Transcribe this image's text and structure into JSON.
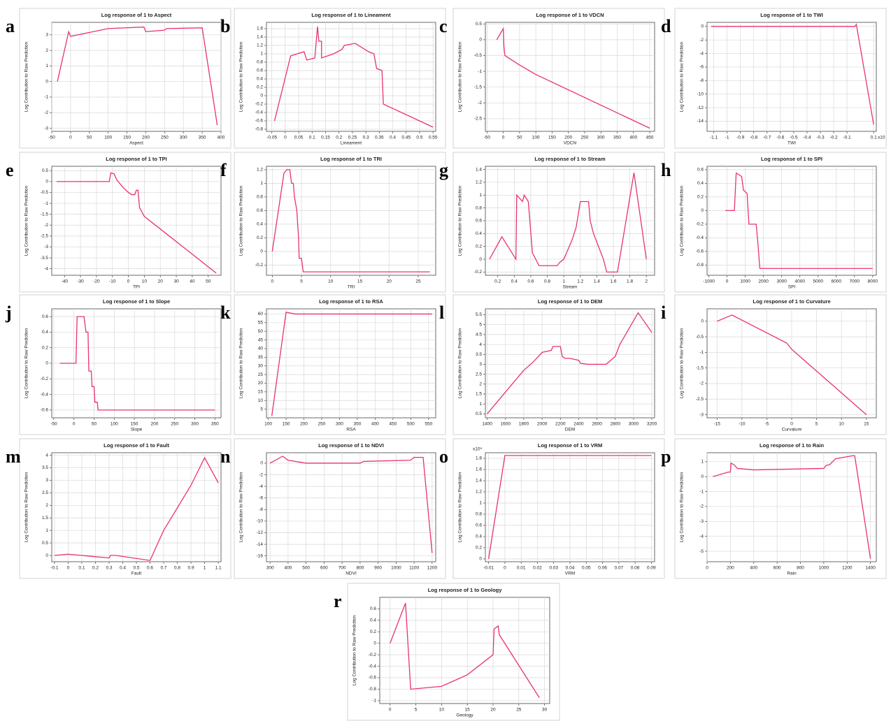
{
  "chart_data": [
    {
      "type": "line",
      "panel": "a",
      "title": "Log response of 1 to Aspect",
      "x_label": "Aspect",
      "y_label": "Log Contribution to Raw Prediction",
      "color": "#e8336d",
      "grid": true,
      "xlim": [
        -50,
        400
      ],
      "xticks": [
        -50,
        0,
        50,
        100,
        150,
        200,
        250,
        300,
        350,
        400
      ],
      "ylim": [
        -3.2,
        3.8
      ],
      "yticks": [
        -3,
        -2,
        -1,
        0,
        1,
        2,
        3
      ],
      "x": [
        -35,
        -5,
        0,
        100,
        195,
        200,
        250,
        255,
        350,
        390
      ],
      "values": [
        0,
        3.2,
        2.9,
        3.4,
        3.5,
        3.2,
        3.3,
        3.4,
        3.45,
        -2.8
      ]
    },
    {
      "type": "line",
      "panel": "b",
      "title": "Log response of 1 to Lineament",
      "x_label": "Lineament",
      "y_label": "Log Contribution to Raw Prediction",
      "color": "#e8336d",
      "grid": true,
      "xlim": [
        -0.07,
        0.56
      ],
      "xticks": [
        -0.05,
        0,
        0.05,
        0.1,
        0.15,
        0.2,
        0.25,
        0.3,
        0.35,
        0.4,
        0.45,
        0.5,
        0.55
      ],
      "ylim": [
        -0.85,
        1.75
      ],
      "yticks": [
        -0.8,
        -0.6,
        -0.4,
        -0.2,
        0,
        0.2,
        0.4,
        0.6,
        0.8,
        1,
        1.2,
        1.4,
        1.6
      ],
      "x": [
        -0.04,
        0.02,
        0.07,
        0.08,
        0.11,
        0.12,
        0.125,
        0.135,
        0.135,
        0.18,
        0.21,
        0.22,
        0.26,
        0.31,
        0.33,
        0.34,
        0.36,
        0.365,
        0.55
      ],
      "values": [
        -0.6,
        0.95,
        1.05,
        0.85,
        0.9,
        1.65,
        1.3,
        1.3,
        0.9,
        1,
        1.1,
        1.2,
        1.25,
        1.05,
        1,
        0.65,
        0.6,
        -0.2,
        -0.75
      ]
    },
    {
      "type": "line",
      "panel": "c",
      "title": "Log response of 1 to VDCN",
      "x_label": "VDCN",
      "y_label": "Log Contribution to Raw Prediction",
      "color": "#e8336d",
      "grid": true,
      "xlim": [
        -55,
        465
      ],
      "xticks": [
        -50,
        0,
        50,
        100,
        150,
        200,
        250,
        300,
        350,
        400,
        450
      ],
      "ylim": [
        -2.9,
        0.55
      ],
      "yticks": [
        -2.5,
        -2,
        -1.5,
        -1,
        -0.5,
        0,
        0.5
      ],
      "x": [
        -20,
        0,
        2,
        5,
        50,
        100,
        450
      ],
      "values": [
        0,
        0.35,
        -0.2,
        -0.5,
        -0.8,
        -1.1,
        -2.8
      ]
    },
    {
      "type": "line",
      "panel": "d",
      "title": "Log response of 1 to TWI",
      "x_label": "TWI",
      "x_multiplier": "x10",
      "y_label": "Log Contribution to Raw Prediction",
      "color": "#e8336d",
      "grid": true,
      "xlim": [
        -1.15,
        0.12
      ],
      "xticks": [
        -1.1,
        -1,
        -0.9,
        -0.8,
        -0.7,
        -0.6,
        -0.5,
        -0.4,
        -0.3,
        -0.2,
        -0.1,
        0.1
      ],
      "ylim": [
        -15.5,
        0.6
      ],
      "yticks": [
        -14,
        -12,
        -10,
        -8,
        -6,
        -4,
        -2,
        0
      ],
      "x": [
        -1.12,
        -0.04,
        -0.03,
        0.1
      ],
      "values": [
        0,
        0,
        0.3,
        -14.5
      ]
    },
    {
      "type": "line",
      "panel": "e",
      "title": "Log response of 1 to TPI",
      "x_label": "TPI",
      "y_label": "Log Contribution to Raw Prediction",
      "color": "#e8336d",
      "grid": true,
      "xlim": [
        -48,
        58
      ],
      "xticks": [
        -40,
        -30,
        -20,
        -10,
        0,
        10,
        20,
        30,
        40,
        50
      ],
      "ylim": [
        -4.3,
        0.7
      ],
      "yticks": [
        -4,
        -3.5,
        -3,
        -2.5,
        -2,
        -1.5,
        -1,
        -0.5,
        0,
        0.5
      ],
      "x": [
        -45,
        -12,
        -11,
        -9,
        -7,
        -3,
        0,
        2,
        4,
        5,
        6,
        7,
        10,
        55
      ],
      "values": [
        0,
        0,
        0.4,
        0.35,
        0.05,
        -0.3,
        -0.5,
        -0.6,
        -0.6,
        -0.4,
        -0.4,
        -1.2,
        -1.6,
        -4.2
      ]
    },
    {
      "type": "line",
      "panel": "f",
      "title": "Log response of 1 to TRI",
      "x_label": "TRI",
      "y_label": "Log Contribution to Raw Prediction",
      "color": "#e8336d",
      "grid": true,
      "xlim": [
        -1,
        28
      ],
      "xticks": [
        0,
        5,
        10,
        15,
        20,
        25
      ],
      "ylim": [
        -0.35,
        1.25
      ],
      "yticks": [
        -0.2,
        0,
        0.2,
        0.4,
        0.6,
        0.8,
        1,
        1.2
      ],
      "x": [
        0,
        2,
        2.5,
        3,
        3.3,
        3.6,
        3.8,
        4.2,
        4.5,
        4.6,
        5,
        5.3,
        27
      ],
      "values": [
        0,
        1.15,
        1.2,
        1.2,
        1,
        1,
        0.8,
        0.6,
        0.2,
        -0.1,
        -0.1,
        -0.3,
        -0.3
      ]
    },
    {
      "type": "line",
      "panel": "g",
      "title": "Log response of 1 to Stream",
      "x_label": "Stream",
      "y_label": "Log Contribution to Raw Prediction",
      "color": "#e8336d",
      "grid": true,
      "xlim": [
        0.05,
        2.1
      ],
      "xticks": [
        0.2,
        0.4,
        0.6,
        0.8,
        1,
        1.2,
        1.4,
        1.6,
        1.8,
        2
      ],
      "ylim": [
        -0.25,
        1.45
      ],
      "yticks": [
        -0.2,
        0,
        0.2,
        0.4,
        0.6,
        0.8,
        1,
        1.2,
        1.4
      ],
      "x": [
        0.1,
        0.25,
        0.42,
        0.43,
        0.5,
        0.52,
        0.57,
        0.62,
        0.7,
        0.92,
        0.95,
        1,
        1.05,
        1.1,
        1.15,
        1.2,
        1.3,
        1.32,
        1.36,
        1.42,
        1.48,
        1.52,
        1.65,
        1.85,
        2
      ],
      "values": [
        0,
        0.35,
        0,
        1,
        0.9,
        1,
        0.9,
        0.1,
        -0.1,
        -0.1,
        -0.05,
        0,
        0.15,
        0.3,
        0.5,
        0.9,
        0.9,
        0.6,
        0.4,
        0.2,
        0,
        -0.2,
        -0.2,
        1.35,
        0
      ]
    },
    {
      "type": "line",
      "panel": "h",
      "title": "Log response of 1 to SPI",
      "x_label": "SPI",
      "y_label": "Log Contribution to Raw Prediction",
      "color": "#e8336d",
      "grid": true,
      "xlim": [
        -1100,
        8200
      ],
      "xticks": [
        -1000,
        0,
        1000,
        2000,
        3000,
        4000,
        5000,
        6000,
        7000,
        8000
      ],
      "ylim": [
        -0.95,
        0.65
      ],
      "yticks": [
        -0.8,
        -0.6,
        -0.4,
        -0.2,
        0,
        0.2,
        0.4,
        0.6
      ],
      "x": [
        -100,
        400,
        500,
        800,
        900,
        1100,
        1200,
        1600,
        1700,
        1800,
        8000
      ],
      "values": [
        0,
        0,
        0.55,
        0.5,
        0.3,
        0.25,
        -0.2,
        -0.2,
        -0.5,
        -0.85,
        -0.85
      ]
    },
    {
      "type": "line",
      "panel": "j",
      "title": "Log response of 1 to Slope",
      "x_label": "Slope",
      "y_label": "Log Contribution to Raw Prediction",
      "color": "#e8336d",
      "grid": true,
      "xlim": [
        -55,
        365
      ],
      "xticks": [
        -50,
        0,
        50,
        100,
        150,
        200,
        250,
        300,
        350
      ],
      "ylim": [
        -0.7,
        0.7
      ],
      "yticks": [
        -0.6,
        -0.4,
        -0.2,
        0,
        0.2,
        0.4,
        0.6
      ],
      "x": [
        -35,
        5,
        8,
        25,
        30,
        35,
        37,
        43,
        45,
        50,
        52,
        58,
        60,
        350
      ],
      "values": [
        0,
        0,
        0.6,
        0.6,
        0.4,
        0.4,
        -0.1,
        -0.1,
        -0.3,
        -0.3,
        -0.5,
        -0.5,
        -0.6,
        -0.6
      ]
    },
    {
      "type": "line",
      "panel": "k",
      "title": "Log response of 1 to RSA",
      "x_label": "RSA",
      "y_label": "Log Contribution to Raw Prediction",
      "color": "#e8336d",
      "grid": true,
      "xlim": [
        95,
        570
      ],
      "xticks": [
        100,
        150,
        200,
        250,
        300,
        350,
        400,
        450,
        500,
        550
      ],
      "ylim": [
        0,
        63
      ],
      "yticks": [
        5,
        10,
        15,
        20,
        25,
        30,
        35,
        40,
        45,
        50,
        55,
        60
      ],
      "x": [
        110,
        150,
        175,
        560
      ],
      "values": [
        1,
        61,
        60,
        60
      ]
    },
    {
      "type": "line",
      "panel": "l",
      "title": "Log response of 1 to DEM",
      "x_label": "DEM",
      "y_label": "Log Contribution to Raw Prediction",
      "color": "#e8336d",
      "grid": true,
      "xlim": [
        1380,
        3230
      ],
      "xticks": [
        1400,
        1600,
        1800,
        2000,
        2200,
        2400,
        2600,
        2800,
        3000,
        3200
      ],
      "ylim": [
        0.3,
        5.8
      ],
      "yticks": [
        0.5,
        1,
        1.5,
        2,
        2.5,
        3,
        3.5,
        4,
        4.5,
        5,
        5.5
      ],
      "x": [
        1400,
        1800,
        1900,
        2000,
        2100,
        2120,
        2200,
        2220,
        2250,
        2300,
        2400,
        2420,
        2500,
        2700,
        2800,
        2850,
        2950,
        3050,
        3200
      ],
      "values": [
        0.5,
        2.7,
        3.1,
        3.6,
        3.7,
        3.9,
        3.9,
        3.4,
        3.3,
        3.3,
        3.2,
        3.05,
        3,
        3,
        3.4,
        4,
        4.8,
        5.6,
        4.6
      ]
    },
    {
      "type": "line",
      "panel": "i",
      "title": "Log response of 1 to Curvature",
      "x_label": "Curvature",
      "y_label": "Log Contribution to Raw Prediction",
      "color": "#e8336d",
      "grid": true,
      "xlim": [
        -17,
        17
      ],
      "xticks": [
        -15,
        -10,
        -5,
        0,
        5,
        10,
        15
      ],
      "ylim": [
        -3.1,
        0.4
      ],
      "yticks": [
        -3,
        -2.5,
        -2,
        -1.5,
        -1,
        -0.5,
        0
      ],
      "x": [
        -15,
        -12,
        -1,
        0,
        15
      ],
      "values": [
        0,
        0.2,
        -0.7,
        -0.9,
        -3
      ]
    },
    {
      "type": "line",
      "panel": "m",
      "title": "Log response of 1 to Fault",
      "x_label": "Fault",
      "y_label": "Log Contribution to Raw Prediction",
      "color": "#e8336d",
      "grid": true,
      "xlim": [
        -0.12,
        1.12
      ],
      "xticks": [
        -0.1,
        0,
        0.1,
        0.2,
        0.3,
        0.4,
        0.5,
        0.6,
        0.7,
        0.8,
        0.9,
        1,
        1.1
      ],
      "ylim": [
        -0.25,
        4.1
      ],
      "yticks": [
        0,
        0.5,
        1,
        1.5,
        2,
        2.5,
        3,
        3.5,
        4
      ],
      "x": [
        -0.1,
        0,
        0.1,
        0.2,
        0.3,
        0.31,
        0.35,
        0.6,
        0.7,
        0.9,
        1,
        1.1
      ],
      "values": [
        0,
        0.05,
        0,
        -0.05,
        -0.1,
        0,
        0,
        -0.2,
        1,
        2.8,
        3.9,
        2.9
      ]
    },
    {
      "type": "line",
      "panel": "n",
      "title": "Log response of 1 to NDVI",
      "x_label": "NDVI",
      "y_label": "Log Contribution to Raw Prediction",
      "color": "#e8336d",
      "grid": true,
      "xlim": [
        280,
        1220
      ],
      "xticks": [
        300,
        400,
        500,
        600,
        700,
        800,
        900,
        1000,
        1100,
        1200
      ],
      "ylim": [
        -17,
        1.8
      ],
      "yticks": [
        -16,
        -14,
        -12,
        -10,
        -8,
        -6,
        -4,
        -2,
        0
      ],
      "x": [
        300,
        370,
        400,
        500,
        800,
        820,
        1080,
        1100,
        1150,
        1200
      ],
      "values": [
        0,
        1.2,
        0.5,
        0,
        0,
        0.3,
        0.5,
        1,
        1,
        -15.5
      ]
    },
    {
      "type": "line",
      "panel": "o",
      "title": "Log response of 1 to VRM",
      "x_label": "VRM",
      "y_multiplier": "x10⁵",
      "y_label": "Log Contribution to Raw Prediction",
      "color": "#e8336d",
      "grid": true,
      "xlim": [
        -0.012,
        0.092
      ],
      "xticks": [
        -0.01,
        0,
        0.01,
        0.02,
        0.03,
        0.04,
        0.05,
        0.06,
        0.07,
        0.08,
        0.09
      ],
      "ylim": [
        -0.05,
        1.9
      ],
      "yticks": [
        0,
        0.2,
        0.4,
        0.6,
        0.8,
        1,
        1.2,
        1.4,
        1.6,
        1.8
      ],
      "x": [
        -0.01,
        0,
        0.09
      ],
      "values": [
        0,
        1.85,
        1.85
      ]
    },
    {
      "type": "line",
      "panel": "p",
      "title": "Log response of 1 to Rain",
      "x_label": "Rain",
      "y_label": "Log Contribution to Raw Prediction",
      "color": "#e8336d",
      "grid": true,
      "xlim": [
        0,
        1450
      ],
      "xticks": [
        0,
        200,
        400,
        600,
        800,
        1000,
        1200,
        1400
      ],
      "ylim": [
        -5.7,
        1.6
      ],
      "yticks": [
        -5,
        -4,
        -3,
        -2,
        -1,
        0,
        1
      ],
      "x": [
        50,
        180,
        200,
        205,
        230,
        260,
        400,
        1000,
        1020,
        1050,
        1100,
        1250,
        1265,
        1400
      ],
      "values": [
        0,
        0.3,
        0.3,
        0.9,
        0.8,
        0.55,
        0.45,
        0.55,
        0.75,
        0.8,
        1.2,
        1.4,
        1.4,
        -5.5
      ]
    },
    {
      "type": "line",
      "panel": "r",
      "title": "Log response of 1 to Geology",
      "x_label": "Geology",
      "y_label": "Log Contribution to Raw Prediction",
      "color": "#e8336d",
      "grid": true,
      "xlim": [
        -2,
        31
      ],
      "xticks": [
        0,
        5,
        10,
        15,
        20,
        25,
        30
      ],
      "ylim": [
        -1.05,
        0.8
      ],
      "yticks": [
        -1,
        -0.8,
        -0.6,
        -0.4,
        -0.2,
        0,
        0.2,
        0.4,
        0.6
      ],
      "x": [
        0,
        3,
        4,
        10,
        15,
        20,
        20.2,
        21,
        21.2,
        29
      ],
      "values": [
        0,
        0.7,
        -0.8,
        -0.75,
        -0.55,
        -0.2,
        0.25,
        0.3,
        0.15,
        -0.95
      ]
    }
  ]
}
